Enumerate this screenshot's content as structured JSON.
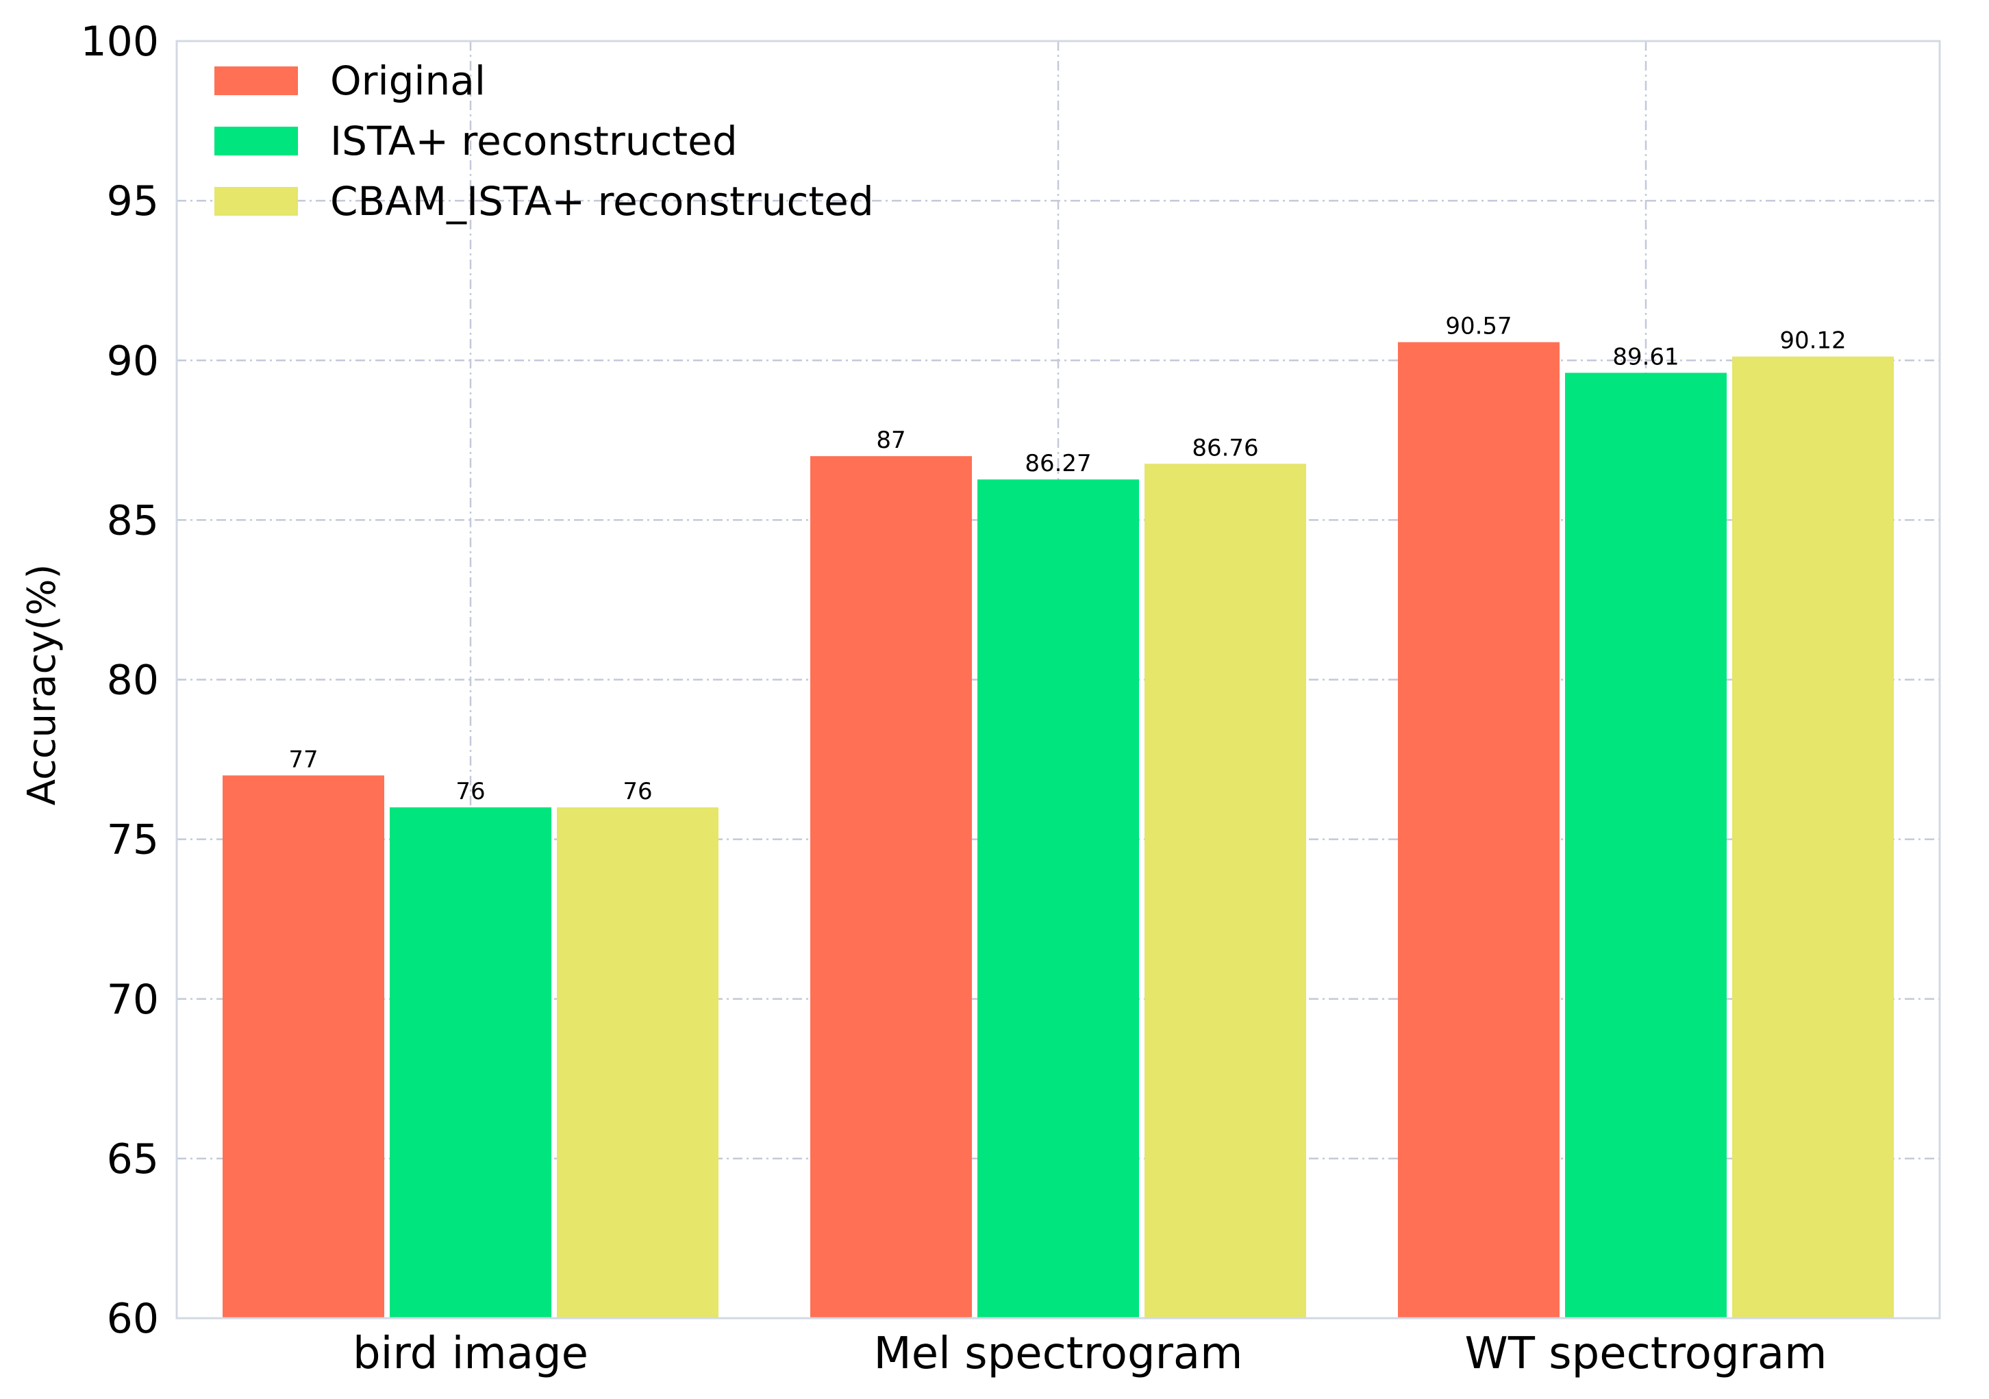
{
  "chart_data": {
    "type": "bar",
    "title": "",
    "xlabel": "",
    "ylabel": "Accuracy(%)",
    "ylim": [
      60,
      100
    ],
    "yticks": [
      60,
      65,
      70,
      75,
      80,
      85,
      90,
      95,
      100
    ],
    "grid": true,
    "legend_position": "top-left",
    "categories": [
      "bird image",
      "Mel spectrogram",
      "WT spectrogram"
    ],
    "series": [
      {
        "name": "Original",
        "color": "#ff7055",
        "values": [
          77,
          87,
          90.57
        ],
        "labels": [
          "77",
          "87",
          "90.57"
        ]
      },
      {
        "name": "ISTA+ reconstructed",
        "color": "#00e57e",
        "values": [
          76,
          86.27,
          89.61
        ],
        "labels": [
          "76",
          "86.27",
          "89.61"
        ]
      },
      {
        "name": "CBAM_ISTA+ reconstructed",
        "color": "#e5e66a",
        "values": [
          76,
          86.76,
          90.12
        ],
        "labels": [
          "76",
          "86.76",
          "90.12"
        ]
      }
    ]
  }
}
